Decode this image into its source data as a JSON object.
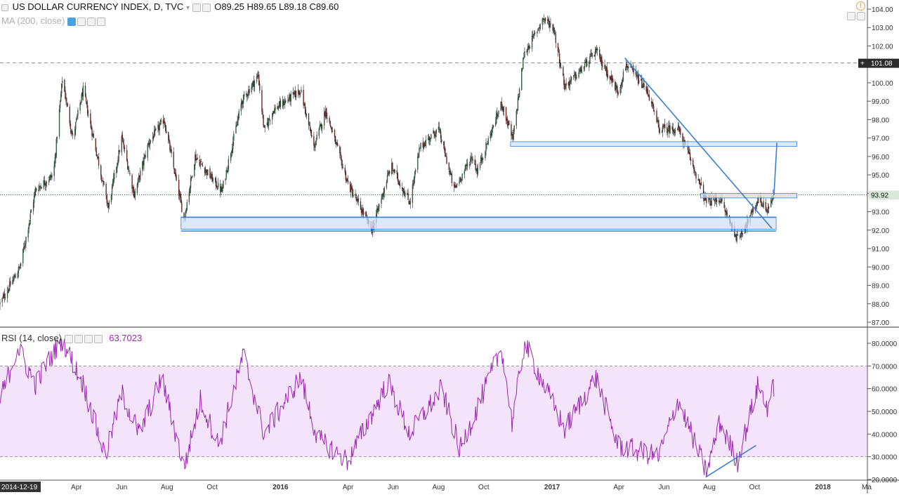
{
  "header": {
    "symbol": "US DOLLAR CURRENCY INDEX, D, TVC",
    "open": "O89.25",
    "high": "H89.65",
    "low": "L89.18",
    "close": "C89.60",
    "ma_label": "MA (200, close)"
  },
  "rsi_header": {
    "label": "RSI (14, close)",
    "value": "63.7023"
  },
  "colors": {
    "up": "#2e7d46",
    "down": "#8b1a1a",
    "rsi_line": "#9c27b0",
    "rsi_band": "#f3e3fb",
    "drawing": "#3a7ed8",
    "zone_fill": "#cfe2f7",
    "price_label_bg": "#2b2b2b",
    "last_label_bg": "#d9e8da",
    "alert": "#f0a23d"
  },
  "chart_data": [
    {
      "type": "candlestick",
      "title": "US DOLLAR CURRENCY INDEX, D, TVC",
      "ylim": [
        86.7,
        104.3
      ],
      "y_ticks": [
        "104.00",
        "103.00",
        "102.00",
        "101.00",
        "100.00",
        "99.00",
        "98.00",
        "97.00",
        "96.00",
        "95.00",
        "94.00",
        "93.00",
        "92.00",
        "91.00",
        "90.00",
        "89.00",
        "88.00",
        "87.00"
      ],
      "x_ticks": [
        "2014-12-19",
        "Apr",
        "Jun",
        "Aug",
        "Oct",
        "2016",
        "Apr",
        "Jun",
        "Aug",
        "Oct",
        "2017",
        "Apr",
        "Jun",
        "Aug",
        "Oct",
        "2018",
        "Ma"
      ],
      "x_range": [
        "2014-12-19",
        "2018-03-01"
      ],
      "last_date": "2017-10-27",
      "key_prices": [
        {
          "date": "2014-12-19",
          "value": 88.0
        },
        {
          "date": "2015-01-15",
          "value": 90.0
        },
        {
          "date": "2015-02-05",
          "value": 94.2
        },
        {
          "date": "2015-03-01",
          "value": 95.0
        },
        {
          "date": "2015-03-13",
          "value": 100.2
        },
        {
          "date": "2015-03-27",
          "value": 97.0
        },
        {
          "date": "2015-04-10",
          "value": 99.6
        },
        {
          "date": "2015-05-14",
          "value": 93.2
        },
        {
          "date": "2015-06-01",
          "value": 97.0
        },
        {
          "date": "2015-06-18",
          "value": 93.9
        },
        {
          "date": "2015-07-07",
          "value": 96.7
        },
        {
          "date": "2015-07-28",
          "value": 98.0
        },
        {
          "date": "2015-08-24",
          "value": 92.6
        },
        {
          "date": "2015-09-08",
          "value": 96.0
        },
        {
          "date": "2015-10-14",
          "value": 94.1
        },
        {
          "date": "2015-11-10",
          "value": 99.0
        },
        {
          "date": "2015-12-02",
          "value": 100.4
        },
        {
          "date": "2015-12-10",
          "value": 97.4
        },
        {
          "date": "2015-12-22",
          "value": 98.5
        },
        {
          "date": "2016-01-28",
          "value": 99.6
        },
        {
          "date": "2016-02-15",
          "value": 96.5
        },
        {
          "date": "2016-03-02",
          "value": 98.5
        },
        {
          "date": "2016-04-01",
          "value": 94.5
        },
        {
          "date": "2016-05-03",
          "value": 92.0
        },
        {
          "date": "2016-05-29",
          "value": 95.5
        },
        {
          "date": "2016-06-23",
          "value": 93.5
        },
        {
          "date": "2016-07-07",
          "value": 96.5
        },
        {
          "date": "2016-08-01",
          "value": 97.5
        },
        {
          "date": "2016-08-22",
          "value": 94.2
        },
        {
          "date": "2016-09-15",
          "value": 96.0
        },
        {
          "date": "2016-09-22",
          "value": 95.2
        },
        {
          "date": "2016-10-25",
          "value": 98.9
        },
        {
          "date": "2016-11-09",
          "value": 96.9
        },
        {
          "date": "2016-11-24",
          "value": 101.5
        },
        {
          "date": "2016-12-20",
          "value": 103.5
        },
        {
          "date": "2017-01-03",
          "value": 103.0
        },
        {
          "date": "2017-01-18",
          "value": 99.8
        },
        {
          "date": "2017-02-05",
          "value": 100.5
        },
        {
          "date": "2017-03-01",
          "value": 101.7
        },
        {
          "date": "2017-03-31",
          "value": 99.5
        },
        {
          "date": "2017-04-11",
          "value": 101.0
        },
        {
          "date": "2017-05-10",
          "value": 99.5
        },
        {
          "date": "2017-05-25",
          "value": 97.5
        },
        {
          "date": "2017-06-20",
          "value": 97.5
        },
        {
          "date": "2017-07-05",
          "value": 96.0
        },
        {
          "date": "2017-07-28",
          "value": 93.5
        },
        {
          "date": "2017-08-15",
          "value": 93.7
        },
        {
          "date": "2017-09-08",
          "value": 91.5
        },
        {
          "date": "2017-09-26",
          "value": 92.8
        },
        {
          "date": "2017-10-06",
          "value": 93.7
        },
        {
          "date": "2017-10-18",
          "value": 93.1
        },
        {
          "date": "2017-10-27",
          "value": 93.9
        }
      ],
      "horizontal_lines": [
        {
          "label": "101.08",
          "value": 101.08,
          "style": "dashed"
        },
        {
          "label": "93.92",
          "value": 93.92,
          "style": "dotted-last"
        }
      ],
      "drawings": [
        {
          "kind": "zone",
          "from": "2015-08-20",
          "to": "2017-10-30",
          "y1": 92.05,
          "y2": 92.7
        },
        {
          "kind": "line",
          "from": "2015-08-20",
          "to": "2017-10-30",
          "value": 91.95
        },
        {
          "kind": "line",
          "from": "2015-08-20",
          "to": "2017-10-30",
          "value": 92.7
        },
        {
          "kind": "zone",
          "from": "2016-11-06",
          "to": "2017-11-27",
          "y1": 96.55,
          "y2": 96.8
        },
        {
          "kind": "zone",
          "from": "2017-07-20",
          "to": "2017-11-27",
          "y1": 93.75,
          "y2": 94.0
        },
        {
          "kind": "trend",
          "from": "2017-04-09",
          "y1": 101.35,
          "to": "2017-10-24",
          "y2": 92.1
        },
        {
          "kind": "projection",
          "from": "2017-10-27",
          "y1": 93.9,
          "to": "2017-10-31",
          "y2": 96.75
        }
      ]
    },
    {
      "type": "line",
      "title": "RSI (14, close)",
      "ylim": [
        18,
        83
      ],
      "y_ticks": [
        "80.0000",
        "70.0000",
        "60.0000",
        "50.0000",
        "40.0000",
        "30.0000",
        "20.0000"
      ],
      "bands": [
        30,
        70
      ],
      "key_values": [
        {
          "date": "2014-12-19",
          "value": 55
        },
        {
          "date": "2015-01-12",
          "value": 78
        },
        {
          "date": "2015-02-05",
          "value": 62
        },
        {
          "date": "2015-03-12",
          "value": 82
        },
        {
          "date": "2015-04-10",
          "value": 62
        },
        {
          "date": "2015-05-10",
          "value": 30
        },
        {
          "date": "2015-06-01",
          "value": 58
        },
        {
          "date": "2015-06-25",
          "value": 40
        },
        {
          "date": "2015-07-25",
          "value": 65
        },
        {
          "date": "2015-08-24",
          "value": 25
        },
        {
          "date": "2015-09-15",
          "value": 55
        },
        {
          "date": "2015-10-10",
          "value": 35
        },
        {
          "date": "2015-11-12",
          "value": 75
        },
        {
          "date": "2015-12-10",
          "value": 40
        },
        {
          "date": "2016-01-28",
          "value": 65
        },
        {
          "date": "2016-02-20",
          "value": 38
        },
        {
          "date": "2016-04-01",
          "value": 28
        },
        {
          "date": "2016-05-25",
          "value": 63
        },
        {
          "date": "2016-06-23",
          "value": 40
        },
        {
          "date": "2016-08-05",
          "value": 60
        },
        {
          "date": "2016-08-30",
          "value": 33
        },
        {
          "date": "2016-10-25",
          "value": 78
        },
        {
          "date": "2016-11-08",
          "value": 45
        },
        {
          "date": "2016-11-25",
          "value": 80
        },
        {
          "date": "2017-01-18",
          "value": 42
        },
        {
          "date": "2017-03-01",
          "value": 65
        },
        {
          "date": "2017-03-31",
          "value": 35
        },
        {
          "date": "2017-05-25",
          "value": 30
        },
        {
          "date": "2017-06-20",
          "value": 55
        },
        {
          "date": "2017-07-28",
          "value": 23
        },
        {
          "date": "2017-08-15",
          "value": 45
        },
        {
          "date": "2017-09-08",
          "value": 28
        },
        {
          "date": "2017-10-06",
          "value": 62
        },
        {
          "date": "2017-10-18",
          "value": 52
        },
        {
          "date": "2017-10-27",
          "value": 61
        }
      ],
      "drawings": [
        {
          "kind": "trend",
          "from": "2017-07-27",
          "y1": 21,
          "to": "2017-10-03",
          "y2": 35
        }
      ]
    }
  ]
}
